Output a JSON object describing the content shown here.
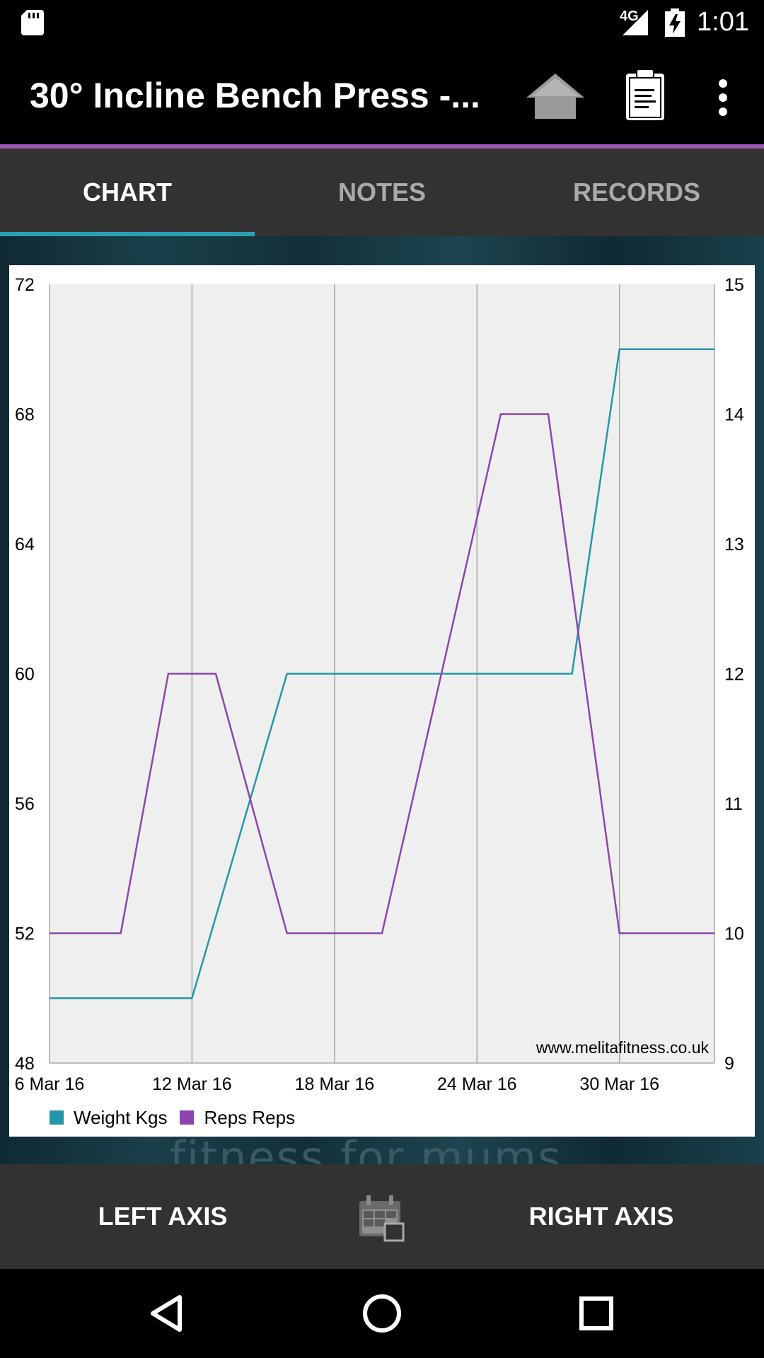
{
  "status_bar": {
    "network": "4G",
    "time": "1:01"
  },
  "app_bar": {
    "title": "30° Incline Bench Press -...",
    "icons": [
      "home-icon",
      "clipboard-icon",
      "more-vert-icon"
    ]
  },
  "tabs": [
    {
      "label": "CHART",
      "active": true
    },
    {
      "label": "NOTES",
      "active": false
    },
    {
      "label": "RECORDS",
      "active": false
    }
  ],
  "chart_data": {
    "type": "line",
    "x": [
      "6 Mar 16",
      "8 Mar 16",
      "10 Mar 16",
      "12 Mar 16",
      "16 Mar 16",
      "20 Mar 16",
      "23 Mar 16",
      "25 Mar 16",
      "28 Mar 16",
      "30 Mar 16",
      "3 Apr 16"
    ],
    "x_ticks": [
      "6 Mar 16",
      "12 Mar 16",
      "18 Mar 16",
      "24 Mar 16",
      "30 Mar 16"
    ],
    "left_axis": {
      "ticks": [
        "48",
        "52",
        "56",
        "60",
        "64",
        "68",
        "72"
      ],
      "ylim": [
        48,
        72
      ]
    },
    "right_axis": {
      "ticks": [
        "9",
        "10",
        "11",
        "12",
        "13",
        "14",
        "15"
      ],
      "ylim": [
        9,
        15
      ]
    },
    "series": [
      {
        "name": "Weight Kgs",
        "axis": "left",
        "color": "#2596a9",
        "points": [
          [
            "6 Mar 16",
            50
          ],
          [
            "12 Mar 16",
            50
          ],
          [
            "16 Mar 16",
            60
          ],
          [
            "23 Mar 16",
            60
          ],
          [
            "28 Mar 16",
            60
          ],
          [
            "30 Mar 16",
            70
          ],
          [
            "3 Apr 16",
            70
          ]
        ]
      },
      {
        "name": "Reps Reps",
        "axis": "right",
        "color": "#8e44ad",
        "points": [
          [
            "6 Mar 16",
            10
          ],
          [
            "9 Mar 16",
            10
          ],
          [
            "11 Mar 16",
            12
          ],
          [
            "13 Mar 16",
            12
          ],
          [
            "16 Mar 16",
            10
          ],
          [
            "20 Mar 16",
            10
          ],
          [
            "25 Mar 16",
            14
          ],
          [
            "27 Mar 16",
            14
          ],
          [
            "30 Mar 16",
            10
          ],
          [
            "3 Apr 16",
            10
          ]
        ]
      }
    ],
    "annotation": "www.melitafitness.co.uk",
    "grid": true,
    "legend_placement": "bottom-left"
  },
  "background_watermark": "fitness for mums",
  "bottom_actions": {
    "left_label": "LEFT AXIS",
    "right_label": "RIGHT AXIS",
    "center_icon": "calendar-icon"
  },
  "nav_bar": {
    "icons": [
      "back-icon",
      "home-circle-icon",
      "recents-icon"
    ]
  }
}
